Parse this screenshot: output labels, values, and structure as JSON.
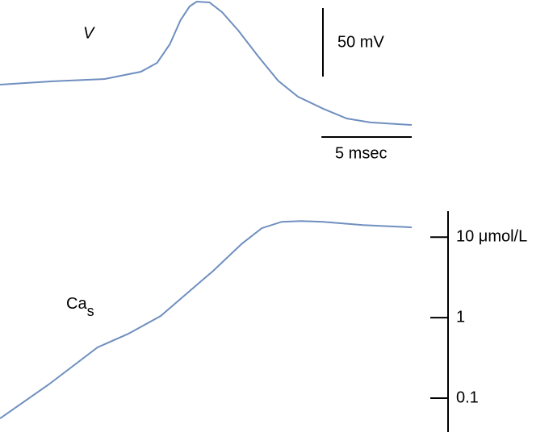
{
  "chart_data": [
    {
      "type": "line",
      "label": "V",
      "color": "#6f8fbf",
      "xlim": [
        0,
        22.8
      ],
      "x": [
        0,
        2.9,
        5.8,
        7.8,
        8.7,
        9.4,
        10.0,
        10.5,
        10.9,
        11.6,
        12.3,
        13.2,
        14.3,
        15.4,
        16.5,
        17.9,
        19.2,
        20.5,
        22.8
      ],
      "values": [
        0,
        2.4,
        4.1,
        9.4,
        15.9,
        29.4,
        47.1,
        57.1,
        60.6,
        60.0,
        52.9,
        39.4,
        20.6,
        2.9,
        -8.8,
        -17.6,
        -24.7,
        -27.6,
        -29.4
      ],
      "scale_bars": [
        {
          "value": 50,
          "label": "50 mV"
        },
        {
          "value": 5,
          "label": "5 msec"
        }
      ]
    },
    {
      "type": "line",
      "label": "Ca",
      "label_subscript": "s",
      "color": "#6f8fbf",
      "log_y": true,
      "xlim": [
        0,
        22.8
      ],
      "ylim": [
        0.038,
        21
      ],
      "yticks": [
        0.1,
        1,
        {
          "value": 10,
          "label": "10 μmol/L"
        }
      ],
      "x": [
        0,
        2.7,
        5.4,
        7.1,
        8.9,
        10.5,
        11.8,
        13.4,
        14.5,
        15.6,
        16.7,
        17.9,
        20.1,
        22.8
      ],
      "values": [
        0.056,
        0.148,
        0.427,
        0.63,
        1.05,
        2.14,
        3.8,
        8.3,
        12.9,
        15.5,
        15.8,
        15.5,
        14.1,
        13.2
      ]
    }
  ]
}
